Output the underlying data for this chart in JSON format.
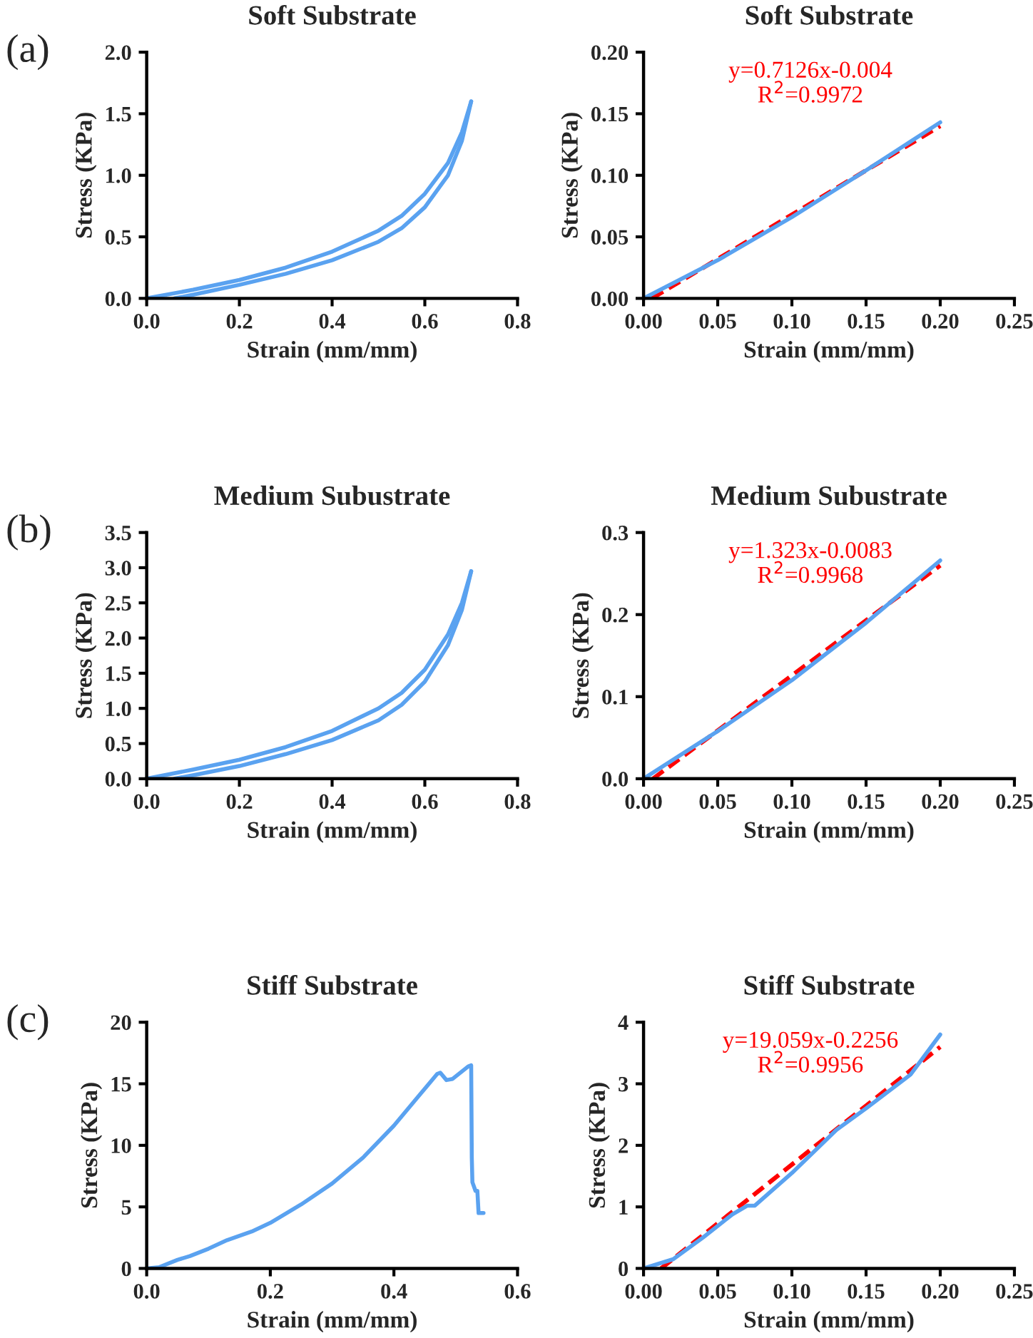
{
  "chart_data": [
    {
      "type": "line",
      "title": "Soft Substrate",
      "xlabel": "Strain (mm/mm)",
      "ylabel": "Stress (KPa)",
      "annotations": [
        "(a)"
      ],
      "xlim": [
        0,
        0.8
      ],
      "xticks": [
        {
          "value": 0,
          "label": "0.0"
        },
        {
          "value": 0.2,
          "label": "0.2"
        },
        {
          "value": 0.4,
          "label": "0.4"
        },
        {
          "value": 0.6,
          "label": "0.6"
        },
        {
          "value": 0.8,
          "label": "0.8"
        }
      ],
      "ylim": [
        0,
        2.0
      ],
      "yticks": [
        {
          "value": 0,
          "label": "0.0"
        },
        {
          "value": 0.5,
          "label": "0.5"
        },
        {
          "value": 1.0,
          "label": "1.0"
        },
        {
          "value": 1.5,
          "label": "1.5"
        },
        {
          "value": 2.0,
          "label": "2.0"
        }
      ],
      "grid": false,
      "legend": false,
      "series": [
        {
          "color": "#5aa2f0",
          "x": [
            0,
            0.1,
            0.2,
            0.3,
            0.4,
            0.5,
            0.55,
            0.6,
            0.65,
            0.68,
            0.7
          ],
          "values": [
            0,
            0.07,
            0.15,
            0.25,
            0.38,
            0.55,
            0.67,
            0.85,
            1.1,
            1.35,
            1.6
          ]
        },
        {
          "color": "#5aa2f0",
          "x": [
            0.7,
            0.68,
            0.65,
            0.6,
            0.55,
            0.5,
            0.4,
            0.3,
            0.2,
            0.1,
            0.06
          ],
          "values": [
            1.6,
            1.28,
            1.0,
            0.74,
            0.57,
            0.46,
            0.31,
            0.2,
            0.11,
            0.03,
            0
          ]
        }
      ]
    },
    {
      "type": "line",
      "title": "Soft Substrate",
      "xlabel": "Strain (mm/mm)",
      "ylabel": "Stress (KPa)",
      "annotations": [
        "y=0.7126x-0.004",
        "R$^{2}$=0.9972"
      ],
      "xlim": [
        0,
        0.25
      ],
      "xticks": [
        {
          "value": 0,
          "label": "0.00"
        },
        {
          "value": 0.05,
          "label": "0.05"
        },
        {
          "value": 0.1,
          "label": "0.10"
        },
        {
          "value": 0.15,
          "label": "0.15"
        },
        {
          "value": 0.2,
          "label": "0.20"
        },
        {
          "value": 0.25,
          "label": "0.25"
        }
      ],
      "ylim": [
        0,
        0.2
      ],
      "yticks": [
        {
          "value": 0,
          "label": "0.00"
        },
        {
          "value": 0.05,
          "label": "0.05"
        },
        {
          "value": 0.1,
          "label": "0.10"
        },
        {
          "value": 0.15,
          "label": "0.15"
        },
        {
          "value": 0.2,
          "label": "0.20"
        }
      ],
      "grid": false,
      "legend": false,
      "series": [
        {
          "color": "#ff0000",
          "line_style": "dashed",
          "x": [
            0.0056,
            0.2
          ],
          "values": [
            0,
            0.14
          ]
        },
        {
          "color": "#5aa2f0",
          "line_style": "solid",
          "x": [
            0,
            0.05,
            0.1,
            0.15,
            0.2
          ],
          "values": [
            0,
            0.031,
            0.066,
            0.104,
            0.143
          ]
        }
      ]
    },
    {
      "type": "line",
      "title": "Medium Subustrate",
      "xlabel": "Strain (mm/mm)",
      "ylabel": "Stress (KPa)",
      "annotations": [
        "(b)"
      ],
      "xlim": [
        0,
        0.8
      ],
      "xticks": [
        {
          "value": 0,
          "label": "0.0"
        },
        {
          "value": 0.2,
          "label": "0.2"
        },
        {
          "value": 0.4,
          "label": "0.4"
        },
        {
          "value": 0.6,
          "label": "0.6"
        },
        {
          "value": 0.8,
          "label": "0.8"
        }
      ],
      "ylim": [
        0,
        3.5
      ],
      "yticks": [
        {
          "value": 0,
          "label": "0.0"
        },
        {
          "value": 0.5,
          "label": "0.5"
        },
        {
          "value": 1.0,
          "label": "1.0"
        },
        {
          "value": 1.5,
          "label": "1.5"
        },
        {
          "value": 2.0,
          "label": "2.0"
        },
        {
          "value": 2.5,
          "label": "2.5"
        },
        {
          "value": 3.0,
          "label": "3.0"
        },
        {
          "value": 3.5,
          "label": "3.5"
        }
      ],
      "grid": false,
      "legend": false,
      "series": [
        {
          "color": "#5aa2f0",
          "x": [
            0,
            0.1,
            0.2,
            0.3,
            0.4,
            0.5,
            0.55,
            0.6,
            0.65,
            0.68,
            0.7
          ],
          "values": [
            0,
            0.13,
            0.27,
            0.45,
            0.68,
            1.0,
            1.22,
            1.55,
            2.05,
            2.5,
            2.95
          ]
        },
        {
          "color": "#5aa2f0",
          "x": [
            0.7,
            0.68,
            0.65,
            0.6,
            0.55,
            0.5,
            0.4,
            0.3,
            0.2,
            0.1,
            0.06
          ],
          "values": [
            2.95,
            2.4,
            1.9,
            1.38,
            1.05,
            0.83,
            0.55,
            0.35,
            0.18,
            0.05,
            0
          ]
        }
      ]
    },
    {
      "type": "line",
      "title": "Medium Subustrate",
      "xlabel": "Strain (mm/mm)",
      "ylabel": "Stress (KPa)",
      "annotations": [
        "y=1.323x-0.0083",
        "R$^{2}$=0.9968"
      ],
      "xlim": [
        0,
        0.25
      ],
      "xticks": [
        {
          "value": 0,
          "label": "0.00"
        },
        {
          "value": 0.05,
          "label": "0.05"
        },
        {
          "value": 0.1,
          "label": "0.10"
        },
        {
          "value": 0.15,
          "label": "0.15"
        },
        {
          "value": 0.2,
          "label": "0.20"
        },
        {
          "value": 0.25,
          "label": "0.25"
        }
      ],
      "ylim": [
        0,
        0.3
      ],
      "yticks": [
        {
          "value": 0,
          "label": "0.0"
        },
        {
          "value": 0.1,
          "label": "0.1"
        },
        {
          "value": 0.2,
          "label": "0.2"
        },
        {
          "value": 0.3,
          "label": "0.3"
        }
      ],
      "grid": false,
      "legend": false,
      "series": [
        {
          "color": "#ff0000",
          "line_style": "dashed",
          "x": [
            0.0063,
            0.2
          ],
          "values": [
            0,
            0.26
          ]
        },
        {
          "color": "#5aa2f0",
          "line_style": "solid",
          "x": [
            0,
            0.05,
            0.1,
            0.15,
            0.2
          ],
          "values": [
            0,
            0.058,
            0.12,
            0.19,
            0.266
          ]
        }
      ]
    },
    {
      "type": "line",
      "title": "Stiff Substrate",
      "xlabel": "Strain (mm/mm)",
      "ylabel": "Stress (KPa)",
      "annotations": [
        "(c)"
      ],
      "xlim": [
        0,
        0.6
      ],
      "xticks": [
        {
          "value": 0,
          "label": "0.0"
        },
        {
          "value": 0.2,
          "label": "0.2"
        },
        {
          "value": 0.4,
          "label": "0.4"
        },
        {
          "value": 0.6,
          "label": "0.6"
        }
      ],
      "ylim": [
        0,
        20
      ],
      "yticks": [
        0,
        5,
        10,
        15,
        20
      ],
      "grid": false,
      "legend": false,
      "series": [
        {
          "color": "#5aa2f0",
          "x": [
            0,
            0.02,
            0.05,
            0.07,
            0.1,
            0.13,
            0.17,
            0.2,
            0.25,
            0.3,
            0.35,
            0.4,
            0.44,
            0.47,
            0.475,
            0.485,
            0.495,
            0.52,
            0.525,
            0.526,
            0.527,
            0.532,
            0.535,
            0.537,
            0.545
          ],
          "values": [
            0,
            0.1,
            0.7,
            1.0,
            1.6,
            2.3,
            3.0,
            3.7,
            5.2,
            6.9,
            9.0,
            11.6,
            14.0,
            15.8,
            15.9,
            15.3,
            15.4,
            16.4,
            16.5,
            9.0,
            7.0,
            6.3,
            6.3,
            4.5,
            4.5
          ]
        }
      ]
    },
    {
      "type": "line",
      "title": "Stiff Substrate",
      "xlabel": "Strain (mm/mm)",
      "ylabel": "Stress (KPa)",
      "annotations": [
        "y=19.059x-0.2256",
        "R$^{2}$=0.9956"
      ],
      "xlim": [
        0,
        0.25
      ],
      "xticks": [
        {
          "value": 0,
          "label": "0.00"
        },
        {
          "value": 0.05,
          "label": "0.05"
        },
        {
          "value": 0.1,
          "label": "0.10"
        },
        {
          "value": 0.15,
          "label": "0.15"
        },
        {
          "value": 0.2,
          "label": "0.20"
        },
        {
          "value": 0.25,
          "label": "0.25"
        }
      ],
      "ylim": [
        0,
        4
      ],
      "yticks": [
        0,
        1,
        2,
        3,
        4
      ],
      "grid": false,
      "legend": false,
      "series": [
        {
          "color": "#ff0000",
          "line_style": "dashed",
          "x": [
            0.0118,
            0.2
          ],
          "values": [
            0,
            3.6
          ]
        },
        {
          "color": "#5aa2f0",
          "line_style": "solid",
          "x": [
            0,
            0.02,
            0.04,
            0.06,
            0.07,
            0.075,
            0.1,
            0.13,
            0.15,
            0.18,
            0.2
          ],
          "values": [
            0,
            0.15,
            0.5,
            0.88,
            1.02,
            1.02,
            1.55,
            2.25,
            2.6,
            3.15,
            3.8
          ]
        }
      ]
    }
  ]
}
